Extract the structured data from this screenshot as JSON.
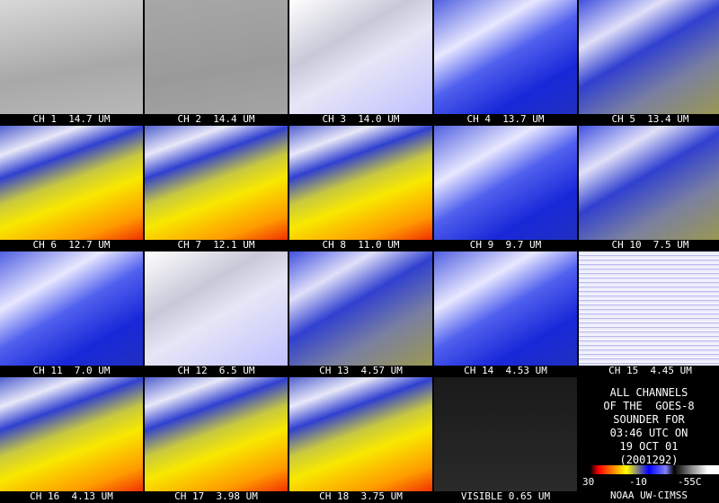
{
  "panels": [
    {
      "label": "CH 1  14.7 UM"
    },
    {
      "label": "CH 2  14.4 UM"
    },
    {
      "label": "CH 3  14.0 UM"
    },
    {
      "label": "CH 4  13.7 UM"
    },
    {
      "label": "CH 5  13.4 UM"
    },
    {
      "label": "CH 6  12.7 UM"
    },
    {
      "label": "CH 7  12.1 UM"
    },
    {
      "label": "CH 8  11.0 UM"
    },
    {
      "label": "CH 9  9.7 UM"
    },
    {
      "label": "CH 10  7.5 UM"
    },
    {
      "label": "CH 11  7.0 UM"
    },
    {
      "label": "CH 12  6.5 UM"
    },
    {
      "label": "CH 13  4.57 UM"
    },
    {
      "label": "CH 14  4.53 UM"
    },
    {
      "label": "CH 15  4.45 UM"
    },
    {
      "label": "CH 16  4.13 UM"
    },
    {
      "label": "CH 17  3.98 UM"
    },
    {
      "label": "CH 18  3.75 UM"
    },
    {
      "label": "VISIBLE 0.65 UM"
    }
  ],
  "info": {
    "lines": [
      "ALL CHANNELS",
      "OF THE  GOES-8",
      "SOUNDER FOR",
      "03:46 UTC ON",
      "19 OCT 01",
      "(2001292)"
    ],
    "colorbar_labels": [
      "30",
      "-10",
      "-55C"
    ],
    "credit": "NOAA UW-CIMSS"
  }
}
